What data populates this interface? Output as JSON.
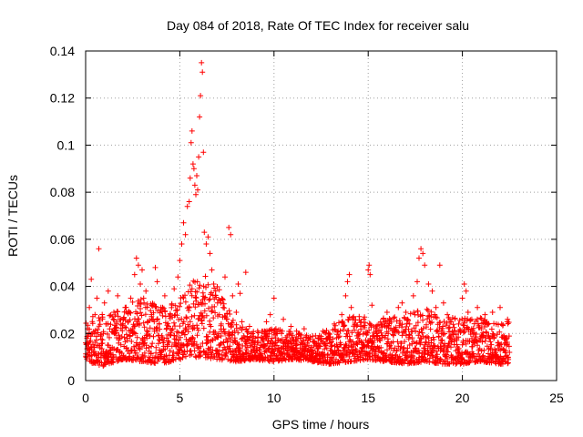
{
  "chart_data": {
    "type": "scatter",
    "title": "Day 084 of 2018, Rate Of TEC Index for receiver salu",
    "xlabel": "GPS time / hours",
    "ylabel": "ROTI / TECUs",
    "xlim": [
      0,
      25
    ],
    "ylim": [
      0,
      0.14
    ],
    "xticks": [
      "0",
      "5",
      "10",
      "15",
      "20",
      "25"
    ],
    "yticks": [
      "0",
      "0.02",
      "0.04",
      "0.06",
      "0.08",
      "0.1",
      "0.12",
      "0.14"
    ],
    "grid": true,
    "marker": "+",
    "color": "#ff0000",
    "series": [
      {
        "name": "ROTI",
        "points": [
          [
            0.0,
            0.016
          ],
          [
            0.1,
            0.022
          ],
          [
            0.2,
            0.031
          ],
          [
            0.3,
            0.043
          ],
          [
            0.4,
            0.012
          ],
          [
            0.5,
            0.028
          ],
          [
            0.6,
            0.035
          ],
          [
            0.7,
            0.056
          ],
          [
            0.8,
            0.019
          ],
          [
            0.9,
            0.027
          ],
          [
            1.0,
            0.033
          ],
          [
            1.1,
            0.024
          ],
          [
            1.2,
            0.038
          ],
          [
            1.3,
            0.014
          ],
          [
            1.5,
            0.029
          ],
          [
            1.6,
            0.021
          ],
          [
            1.7,
            0.036
          ],
          [
            1.8,
            0.012
          ],
          [
            2.0,
            0.026
          ],
          [
            2.1,
            0.031
          ],
          [
            2.2,
            0.018
          ],
          [
            2.4,
            0.035
          ],
          [
            2.5,
            0.022
          ],
          [
            2.6,
            0.045
          ],
          [
            2.7,
            0.052
          ],
          [
            2.8,
            0.049
          ],
          [
            2.9,
            0.041
          ],
          [
            3.0,
            0.047
          ],
          [
            3.1,
            0.033
          ],
          [
            3.2,
            0.038
          ],
          [
            3.3,
            0.025
          ],
          [
            3.4,
            0.019
          ],
          [
            3.5,
            0.028
          ],
          [
            3.7,
            0.048
          ],
          [
            3.8,
            0.042
          ],
          [
            3.9,
            0.024
          ],
          [
            4.0,
            0.031
          ],
          [
            4.2,
            0.036
          ],
          [
            4.3,
            0.018
          ],
          [
            4.5,
            0.022
          ],
          [
            4.6,
            0.027
          ],
          [
            4.7,
            0.039
          ],
          [
            4.8,
            0.015
          ],
          [
            4.9,
            0.044
          ],
          [
            5.0,
            0.051
          ],
          [
            5.1,
            0.058
          ],
          [
            5.2,
            0.067
          ],
          [
            5.3,
            0.062
          ],
          [
            5.4,
            0.074
          ],
          [
            5.5,
            0.076
          ],
          [
            5.55,
            0.086
          ],
          [
            5.6,
            0.101
          ],
          [
            5.65,
            0.106
          ],
          [
            5.7,
            0.092
          ],
          [
            5.75,
            0.09
          ],
          [
            5.8,
            0.083
          ],
          [
            5.85,
            0.079
          ],
          [
            5.9,
            0.087
          ],
          [
            5.95,
            0.081
          ],
          [
            6.0,
            0.095
          ],
          [
            6.05,
            0.112
          ],
          [
            6.1,
            0.121
          ],
          [
            6.15,
            0.135
          ],
          [
            6.2,
            0.131
          ],
          [
            6.25,
            0.097
          ],
          [
            6.3,
            0.063
          ],
          [
            6.4,
            0.058
          ],
          [
            6.5,
            0.061
          ],
          [
            6.6,
            0.054
          ],
          [
            6.7,
            0.047
          ],
          [
            6.8,
            0.041
          ],
          [
            6.9,
            0.038
          ],
          [
            7.0,
            0.033
          ],
          [
            7.1,
            0.028
          ],
          [
            7.2,
            0.024
          ],
          [
            7.3,
            0.031
          ],
          [
            7.4,
            0.044
          ],
          [
            7.5,
            0.026
          ],
          [
            7.6,
            0.065
          ],
          [
            7.7,
            0.062
          ],
          [
            7.8,
            0.036
          ],
          [
            7.9,
            0.021
          ],
          [
            8.0,
            0.029
          ],
          [
            8.1,
            0.041
          ],
          [
            8.2,
            0.037
          ],
          [
            8.3,
            0.025
          ],
          [
            8.4,
            0.019
          ],
          [
            8.5,
            0.046
          ],
          [
            8.7,
            0.023
          ],
          [
            8.8,
            0.016
          ],
          [
            9.0,
            0.018
          ],
          [
            9.1,
            0.013
          ],
          [
            9.3,
            0.015
          ],
          [
            9.5,
            0.021
          ],
          [
            9.6,
            0.025
          ],
          [
            9.8,
            0.028
          ],
          [
            9.9,
            0.018
          ],
          [
            10.0,
            0.035
          ],
          [
            10.1,
            0.022
          ],
          [
            10.3,
            0.017
          ],
          [
            10.5,
            0.026
          ],
          [
            10.7,
            0.019
          ],
          [
            10.9,
            0.023
          ],
          [
            11.0,
            0.014
          ],
          [
            11.2,
            0.021
          ],
          [
            11.4,
            0.018
          ],
          [
            11.6,
            0.022
          ],
          [
            11.8,
            0.017
          ],
          [
            12.0,
            0.012
          ],
          [
            12.2,
            0.019
          ],
          [
            12.4,
            0.015
          ],
          [
            12.6,
            0.021
          ],
          [
            12.8,
            0.018
          ],
          [
            13.0,
            0.016
          ],
          [
            13.2,
            0.024
          ],
          [
            13.4,
            0.021
          ],
          [
            13.6,
            0.028
          ],
          [
            13.8,
            0.036
          ],
          [
            13.9,
            0.042
          ],
          [
            14.0,
            0.045
          ],
          [
            14.1,
            0.031
          ],
          [
            14.2,
            0.026
          ],
          [
            14.4,
            0.019
          ],
          [
            14.6,
            0.023
          ],
          [
            14.8,
            0.027
          ],
          [
            15.0,
            0.047
          ],
          [
            15.05,
            0.049
          ],
          [
            15.1,
            0.045
          ],
          [
            15.2,
            0.032
          ],
          [
            15.4,
            0.021
          ],
          [
            15.6,
            0.018
          ],
          [
            15.8,
            0.026
          ],
          [
            16.0,
            0.029
          ],
          [
            16.2,
            0.022
          ],
          [
            16.4,
            0.027
          ],
          [
            16.6,
            0.031
          ],
          [
            16.8,
            0.033
          ],
          [
            17.0,
            0.029
          ],
          [
            17.2,
            0.024
          ],
          [
            17.4,
            0.036
          ],
          [
            17.6,
            0.042
          ],
          [
            17.7,
            0.052
          ],
          [
            17.8,
            0.056
          ],
          [
            17.9,
            0.054
          ],
          [
            18.0,
            0.049
          ],
          [
            18.2,
            0.041
          ],
          [
            18.4,
            0.038
          ],
          [
            18.6,
            0.031
          ],
          [
            18.8,
            0.049
          ],
          [
            19.0,
            0.033
          ],
          [
            19.2,
            0.028
          ],
          [
            19.4,
            0.025
          ],
          [
            19.6,
            0.021
          ],
          [
            19.8,
            0.024
          ],
          [
            20.0,
            0.035
          ],
          [
            20.1,
            0.041
          ],
          [
            20.2,
            0.038
          ],
          [
            20.3,
            0.029
          ],
          [
            20.5,
            0.026
          ],
          [
            20.8,
            0.031
          ],
          [
            21.0,
            0.022
          ],
          [
            21.2,
            0.028
          ],
          [
            21.4,
            0.019
          ],
          [
            21.6,
            0.029
          ],
          [
            21.8,
            0.024
          ],
          [
            22.0,
            0.031
          ],
          [
            22.2,
            0.018
          ],
          [
            22.4,
            0.026
          ],
          [
            22.5,
            0.012
          ]
        ],
        "band": {
          "step_hours": 0.03,
          "low_by_hour": [
            0.011,
            0.009,
            0.012,
            0.011,
            0.01,
            0.012,
            0.013,
            0.012,
            0.011,
            0.012,
            0.011,
            0.012,
            0.011,
            0.01,
            0.011,
            0.012,
            0.011,
            0.01,
            0.011,
            0.01,
            0.01,
            0.011,
            0.01
          ],
          "high_by_hour": [
            0.026,
            0.028,
            0.029,
            0.036,
            0.03,
            0.034,
            0.046,
            0.04,
            0.024,
            0.02,
            0.021,
            0.02,
            0.018,
            0.021,
            0.027,
            0.026,
            0.026,
            0.027,
            0.03,
            0.026,
            0.026,
            0.026,
            0.024
          ],
          "end_hour": 22.5
        }
      }
    ]
  }
}
